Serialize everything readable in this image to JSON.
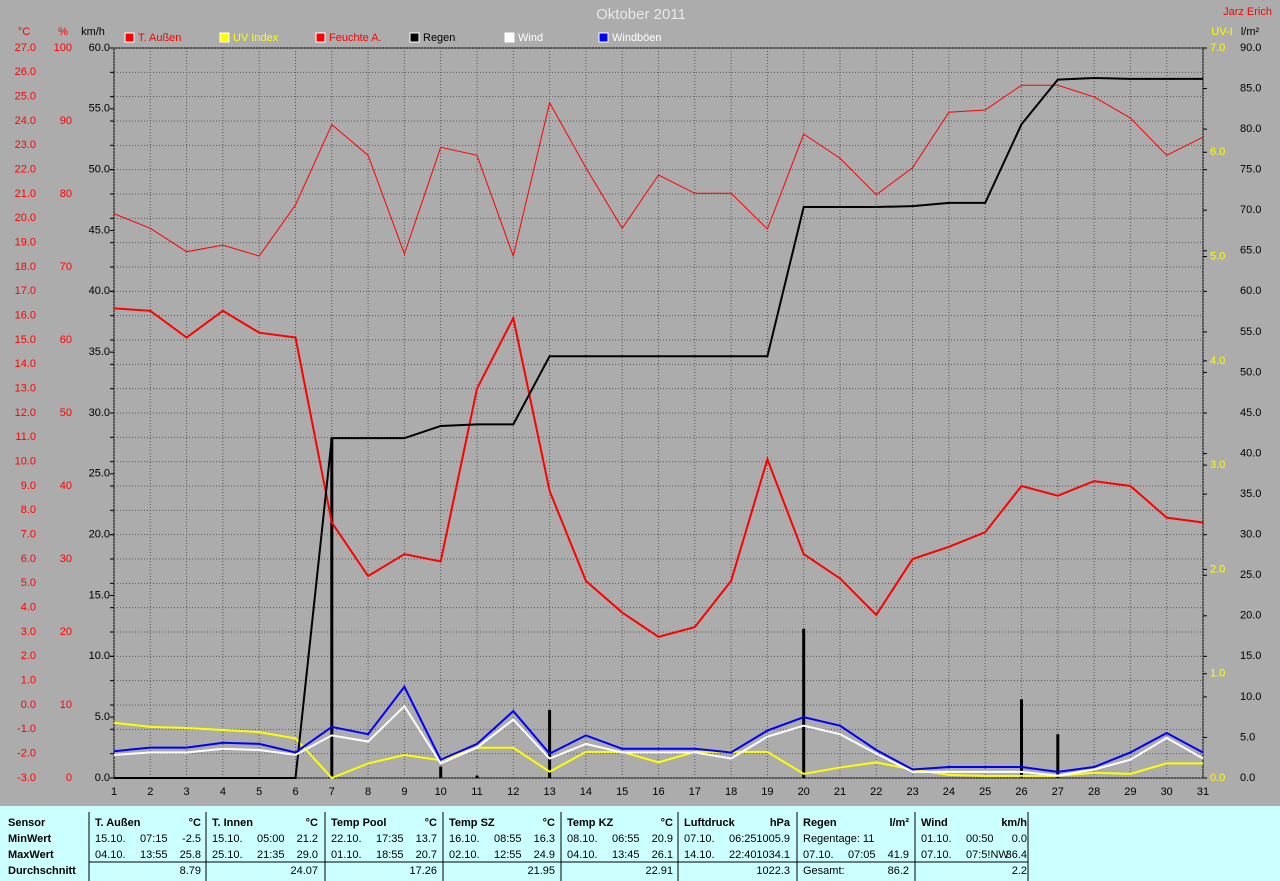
{
  "chart_data": {
    "type": "line",
    "title": "Oktober 2011",
    "annotation": "Jarz Erich",
    "grid": true,
    "x": [
      1,
      2,
      3,
      4,
      5,
      6,
      7,
      8,
      9,
      10,
      11,
      12,
      13,
      14,
      15,
      16,
      17,
      18,
      19,
      20,
      21,
      22,
      23,
      24,
      25,
      26,
      27,
      28,
      29,
      30,
      31
    ],
    "xlim": [
      1,
      31
    ],
    "xticks": [
      1,
      2,
      3,
      4,
      5,
      6,
      7,
      8,
      9,
      10,
      11,
      12,
      13,
      14,
      15,
      16,
      17,
      18,
      19,
      20,
      21,
      22,
      23,
      24,
      25,
      26,
      27,
      28,
      29,
      30,
      31
    ],
    "axes": {
      "temp": {
        "label": "°C",
        "color": "#ff0000",
        "lim": [
          -3,
          27
        ],
        "ticks": [
          {
            "value": -3,
            "label": "-3.0"
          },
          {
            "value": -2,
            "label": "-2.0"
          },
          {
            "value": -1,
            "label": "-1.0"
          },
          {
            "value": 0,
            "label": "0.0"
          },
          {
            "value": 1,
            "label": "1.0"
          },
          {
            "value": 2,
            "label": "2.0"
          },
          {
            "value": 3,
            "label": "3.0"
          },
          {
            "value": 4,
            "label": "4.0"
          },
          {
            "value": 5,
            "label": "5.0"
          },
          {
            "value": 6,
            "label": "6.0"
          },
          {
            "value": 7,
            "label": "7.0"
          },
          {
            "value": 8,
            "label": "8.0"
          },
          {
            "value": 9,
            "label": "9.0"
          },
          {
            "value": 10,
            "label": "10.0"
          },
          {
            "value": 11,
            "label": "11.0"
          },
          {
            "value": 12,
            "label": "12.0"
          },
          {
            "value": 13,
            "label": "13.0"
          },
          {
            "value": 14,
            "label": "14.0"
          },
          {
            "value": 15,
            "label": "15.0"
          },
          {
            "value": 16,
            "label": "16.0"
          },
          {
            "value": 17,
            "label": "17.0"
          },
          {
            "value": 18,
            "label": "18.0"
          },
          {
            "value": 19,
            "label": "19.0"
          },
          {
            "value": 20,
            "label": "20.0"
          },
          {
            "value": 21,
            "label": "21.0"
          },
          {
            "value": 22,
            "label": "22.0"
          },
          {
            "value": 23,
            "label": "23.0"
          },
          {
            "value": 24,
            "label": "24.0"
          },
          {
            "value": 25,
            "label": "25.0"
          },
          {
            "value": 26,
            "label": "26.0"
          },
          {
            "value": 27,
            "label": "27.0"
          }
        ]
      },
      "hum": {
        "label": "%",
        "color": "#ff0000",
        "lim": [
          0,
          100
        ],
        "ticks": [
          0,
          10,
          20,
          30,
          40,
          50,
          60,
          70,
          80,
          90,
          100
        ]
      },
      "wind": {
        "label": "km/h",
        "color": "#000000",
        "lim": [
          0,
          60
        ],
        "ticks": [
          {
            "value": 0,
            "label": "0.0"
          },
          {
            "value": 5,
            "label": "5.0"
          },
          {
            "value": 10,
            "label": "10.0"
          },
          {
            "value": 15,
            "label": "15.0"
          },
          {
            "value": 20,
            "label": "20.0"
          },
          {
            "value": 25,
            "label": "25.0"
          },
          {
            "value": 30,
            "label": "30.0"
          },
          {
            "value": 35,
            "label": "35.0"
          },
          {
            "value": 40,
            "label": "40.0"
          },
          {
            "value": 45,
            "label": "45.0"
          },
          {
            "value": 50,
            "label": "50.0"
          },
          {
            "value": 55,
            "label": "55.0"
          },
          {
            "value": 60,
            "label": "60.0"
          }
        ]
      },
      "uv": {
        "label": "UV-I",
        "color": "#ffff00",
        "lim": [
          0,
          7
        ],
        "ticks": [
          {
            "value": 0,
            "label": "0.0"
          },
          {
            "value": 1,
            "label": "1.0"
          },
          {
            "value": 2,
            "label": "2.0"
          },
          {
            "value": 3,
            "label": "3.0"
          },
          {
            "value": 4,
            "label": "4.0"
          },
          {
            "value": 5,
            "label": "5.0"
          },
          {
            "value": 6,
            "label": "6.0"
          },
          {
            "value": 7,
            "label": "7.0"
          }
        ]
      },
      "rain": {
        "label": "l/m²",
        "color": "#000000",
        "lim": [
          0,
          90
        ],
        "ticks": [
          {
            "value": 0,
            "label": "0.0"
          },
          {
            "value": 5,
            "label": "5.0"
          },
          {
            "value": 10,
            "label": "10.0"
          },
          {
            "value": 15,
            "label": "15.0"
          },
          {
            "value": 20,
            "label": "20.0"
          },
          {
            "value": 25,
            "label": "25.0"
          },
          {
            "value": 30,
            "label": "30.0"
          },
          {
            "value": 35,
            "label": "35.0"
          },
          {
            "value": 40,
            "label": "40.0"
          },
          {
            "value": 45,
            "label": "45.0"
          },
          {
            "value": 50,
            "label": "50.0"
          },
          {
            "value": 55,
            "label": "55.0"
          },
          {
            "value": 60,
            "label": "60.0"
          },
          {
            "value": 65,
            "label": "65.0"
          },
          {
            "value": 70,
            "label": "70.0"
          },
          {
            "value": 75,
            "label": "75.0"
          },
          {
            "value": 80,
            "label": "80.0"
          },
          {
            "value": 85,
            "label": "85.0"
          },
          {
            "value": 90,
            "label": "90.0"
          }
        ]
      }
    },
    "series": [
      {
        "name": "T. Außen",
        "color": "#ff0000",
        "axis": "temp",
        "values": [
          16.3,
          16.2,
          15.1,
          16.2,
          15.3,
          15.1,
          7.5,
          5.3,
          6.2,
          5.9,
          13.0,
          15.9,
          8.8,
          5.1,
          3.8,
          2.8,
          3.2,
          5.1,
          10.1,
          6.2,
          5.2,
          3.7,
          6.0,
          6.5,
          7.1,
          9.0,
          8.6,
          9.2,
          9.0,
          7.7,
          7.5
        ]
      },
      {
        "name": "UV Index",
        "color": "#ffff00",
        "axis": "uv",
        "values": [
          0.53,
          0.49,
          0.48,
          0.46,
          0.44,
          0.38,
          0,
          0.14,
          0.22,
          0.17,
          0.29,
          0.29,
          0.06,
          0.25,
          0.25,
          0.15,
          0.25,
          0.25,
          0.25,
          0.04,
          0.1,
          0.15,
          0.08,
          0.03,
          0.02,
          0.02,
          0.02,
          0.05,
          0.04,
          0.14,
          0.14
        ]
      },
      {
        "name": "Feuchte A.",
        "color": "#ff0000",
        "axis": "hum",
        "values": [
          77.3,
          75.3,
          72.1,
          73.0,
          71.5,
          78.5,
          89.5,
          85.3,
          71.8,
          86.4,
          85.3,
          71.5,
          92.5,
          83.6,
          75.3,
          82.6,
          80.1,
          80.1,
          75.2,
          88.2,
          84.9,
          79.9,
          83.6,
          91.2,
          91.5,
          94.9,
          94.9,
          93.3,
          90.4,
          85.3,
          87.8
        ]
      },
      {
        "name": "Regen",
        "color": "#000000",
        "axis": "rain",
        "values": [
          0,
          0,
          0,
          0,
          0,
          0,
          41.9,
          41.9,
          41.9,
          43.4,
          43.6,
          43.6,
          52.0,
          52.0,
          52.0,
          52.0,
          52.0,
          52.0,
          52.0,
          70.4,
          70.4,
          70.4,
          70.5,
          70.9,
          70.9,
          80.6,
          86.1,
          86.3,
          86.2,
          86.2,
          86.2
        ]
      },
      {
        "name": "Wind",
        "color": "#ffffff",
        "axis": "wind",
        "values": [
          1.9,
          2.1,
          2.1,
          2.4,
          2.3,
          1.9,
          3.5,
          3.0,
          5.9,
          1.2,
          2.5,
          4.8,
          1.6,
          2.8,
          2.1,
          2.1,
          2.1,
          1.6,
          3.4,
          4.3,
          3.6,
          2.0,
          0.5,
          0.5,
          0.5,
          0.5,
          0.2,
          0.7,
          1.5,
          3.3,
          1.6
        ]
      },
      {
        "name": "Windböen",
        "color": "#0000ff",
        "axis": "wind",
        "values": [
          2.2,
          2.5,
          2.5,
          2.9,
          2.8,
          2.1,
          4.2,
          3.6,
          7.5,
          1.5,
          2.8,
          5.5,
          2.0,
          3.5,
          2.4,
          2.4,
          2.4,
          2.1,
          3.9,
          5.0,
          4.3,
          2.3,
          0.7,
          0.9,
          0.9,
          0.9,
          0.5,
          0.9,
          2.1,
          3.7,
          2.1
        ]
      },
      {
        "type": "bar",
        "color": "#000000",
        "axis": "rain",
        "values": [
          null,
          null,
          null,
          null,
          null,
          null,
          41.9,
          null,
          null,
          1.4,
          0.3,
          null,
          8.4,
          null,
          null,
          null,
          null,
          null,
          null,
          18.4,
          null,
          null,
          null,
          null,
          null,
          9.7,
          5.4,
          null,
          null,
          null,
          null
        ]
      }
    ]
  },
  "table": {
    "label_header": "Sensor",
    "row_labels": [
      "MinWert",
      "MaxWert",
      "Durchschnitt"
    ],
    "groups": [
      {
        "header": "T. Außen",
        "unit": "°C",
        "min": [
          "15.10.",
          "07:15",
          "-2.5"
        ],
        "max": [
          "04.10.",
          "13:55",
          "25.8"
        ],
        "avg": [
          "8.79"
        ]
      },
      {
        "header": "T. Innen",
        "unit": "°C",
        "min": [
          "15.10.",
          "05:00",
          "21.2"
        ],
        "max": [
          "25.10.",
          "21:35",
          "29.0"
        ],
        "avg": [
          "24.07"
        ]
      },
      {
        "header": "Temp Pool",
        "unit": "°C",
        "min": [
          "22.10.",
          "17:35",
          "13.7"
        ],
        "max": [
          "01.10.",
          "18:55",
          "20.7"
        ],
        "avg": [
          "17.26"
        ]
      },
      {
        "header": "Temp SZ",
        "unit": "°C",
        "min": [
          "16.10.",
          "08:55",
          "16.3"
        ],
        "max": [
          "02.10.",
          "12:55",
          "24.9"
        ],
        "avg": [
          "21.95"
        ]
      },
      {
        "header": "Temp KZ",
        "unit": "°C",
        "min": [
          "08.10.",
          "06:55",
          "20.9"
        ],
        "max": [
          "04.10.",
          "13:45",
          "26.1"
        ],
        "avg": [
          "22.91"
        ]
      },
      {
        "header": "Luftdruck",
        "unit": "hPa",
        "min": [
          "07.10.",
          "06:25",
          "1005.9"
        ],
        "max": [
          "14.10.",
          "22:40",
          "1034.1"
        ],
        "avg": [
          "1022.3"
        ]
      },
      {
        "header": "Regen",
        "unit": "l/m²",
        "min": [
          "Regentage: 11"
        ],
        "max": [
          "07.10.",
          "07:05",
          "41.9"
        ],
        "avg": [
          "Gesamt:",
          "86.2"
        ]
      },
      {
        "header": "Wind",
        "unit": "km/h",
        "min": [
          "01.10.",
          "00:50",
          "0.0"
        ],
        "max": [
          "07.10.",
          "07:5!NW",
          "36.4"
        ],
        "avg": [
          "2.2"
        ]
      }
    ]
  }
}
